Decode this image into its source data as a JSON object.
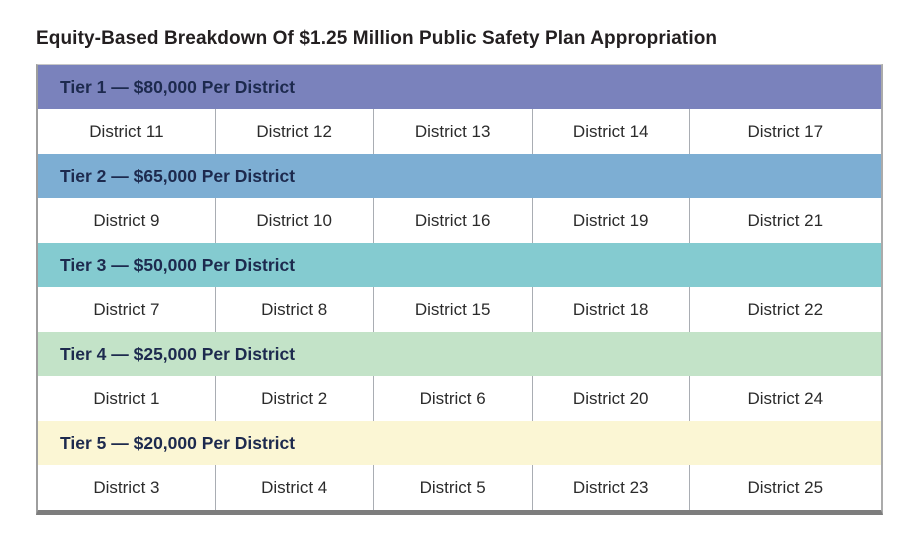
{
  "title": "Equity-Based Breakdown Of $1.25 Million Public Safety Plan Appropriation",
  "table": {
    "tiers": [
      {
        "label": "Tier 1 — $80,000 Per District",
        "amount_per_district": "$80,000",
        "color": "#7a82bc",
        "districts": [
          "District 11",
          "District 12",
          "District 13",
          "District 14",
          "District 17"
        ]
      },
      {
        "label": "Tier 2 — $65,000 Per District",
        "amount_per_district": "$65,000",
        "color": "#7daed3",
        "districts": [
          "District 9",
          "District 10",
          "District 16",
          "District 19",
          "District 21"
        ]
      },
      {
        "label": "Tier 3 — $50,000 Per District",
        "amount_per_district": "$50,000",
        "color": "#84cbd0",
        "districts": [
          "District 7",
          "District 8",
          "District 15",
          "District 18",
          "District 22"
        ]
      },
      {
        "label": "Tier 4 — $25,000 Per District",
        "amount_per_district": "$25,000",
        "color": "#c3e3c8",
        "districts": [
          "District 1",
          "District 2",
          "District 6",
          "District 20",
          "District 24"
        ]
      },
      {
        "label": "Tier 5 — $20,000 Per District",
        "amount_per_district": "$20,000",
        "color": "#fbf6d4",
        "districts": [
          "District 3",
          "District 4",
          "District 5",
          "District 23",
          "District 25"
        ]
      }
    ],
    "header_text_color": "#1d2a4e",
    "cell_text_color": "#2b2b2b"
  },
  "chart_data": {
    "type": "table",
    "title": "Equity-Based Breakdown Of $1.25 Million Public Safety Plan Appropriation",
    "rows": [
      {
        "tier": "Tier 1",
        "amount_per_district": 80000,
        "districts": [
          11,
          12,
          13,
          14,
          17
        ]
      },
      {
        "tier": "Tier 2",
        "amount_per_district": 65000,
        "districts": [
          9,
          10,
          16,
          19,
          21
        ]
      },
      {
        "tier": "Tier 3",
        "amount_per_district": 50000,
        "districts": [
          7,
          8,
          15,
          18,
          22
        ]
      },
      {
        "tier": "Tier 4",
        "amount_per_district": 25000,
        "districts": [
          1,
          2,
          6,
          20,
          24
        ]
      },
      {
        "tier": "Tier 5",
        "amount_per_district": 20000,
        "districts": [
          3,
          4,
          5,
          23,
          25
        ]
      }
    ],
    "row_colors": [
      "#7a82bc",
      "#7daed3",
      "#84cbd0",
      "#c3e3c8",
      "#fbf6d4"
    ],
    "legend_position": "none",
    "grid": false
  }
}
